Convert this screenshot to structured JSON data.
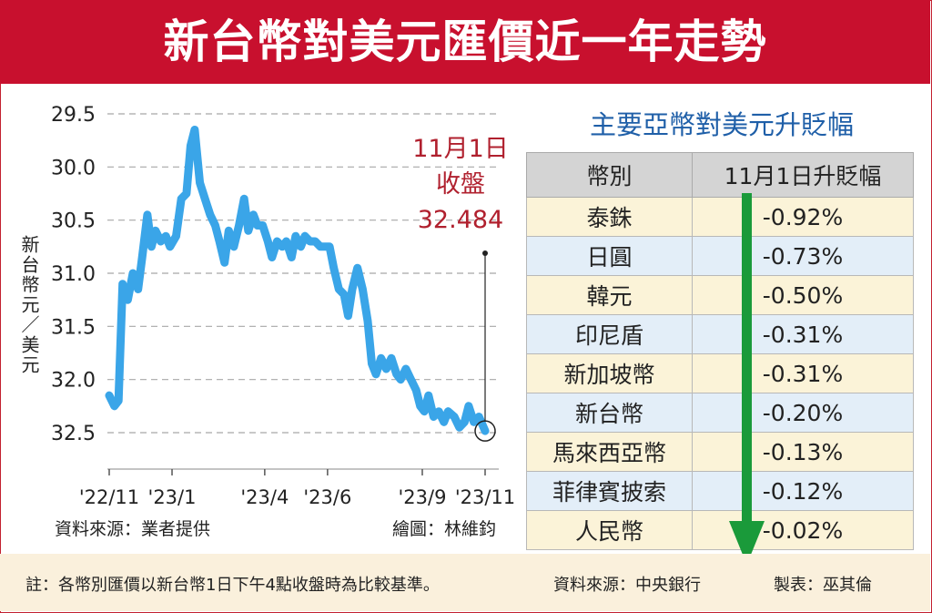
{
  "header": {
    "title": "新台幣對美元匯價近一年走勢"
  },
  "chart_data": {
    "type": "line",
    "ylabel": "新台幣元／美元",
    "y_ticks": [
      "29.5",
      "30.0",
      "30.5",
      "31.0",
      "31.5",
      "32.0",
      "32.5"
    ],
    "ylim": [
      29.5,
      32.5
    ],
    "y_inverted": true,
    "grid": "horizontal-dashed",
    "x_ticks": [
      "'22/11",
      "'23/1",
      "'23/4",
      "'23/6",
      "'23/9",
      "'23/11"
    ],
    "x_tick_dates": [
      "2022-11-01",
      "2023-01-01",
      "2023-04-01",
      "2023-06-01",
      "2023-09-01",
      "2023-11-01"
    ],
    "series": [
      {
        "color": "#3aa5e8",
        "points": [
          [
            "2022-11-01",
            32.15
          ],
          [
            "2022-11-06",
            32.25
          ],
          [
            "2022-11-10",
            32.2
          ],
          [
            "2022-11-14",
            31.1
          ],
          [
            "2022-11-19",
            31.25
          ],
          [
            "2022-11-24",
            31.0
          ],
          [
            "2022-11-29",
            31.15
          ],
          [
            "2022-12-03",
            30.85
          ],
          [
            "2022-12-08",
            30.45
          ],
          [
            "2022-12-12",
            30.75
          ],
          [
            "2022-12-16",
            30.6
          ],
          [
            "2022-12-21",
            30.7
          ],
          [
            "2022-12-26",
            30.65
          ],
          [
            "2022-12-30",
            30.75
          ],
          [
            "2023-01-05",
            30.65
          ],
          [
            "2023-01-10",
            30.3
          ],
          [
            "2023-01-15",
            30.25
          ],
          [
            "2023-01-19",
            29.8
          ],
          [
            "2023-01-23",
            29.65
          ],
          [
            "2023-01-28",
            30.15
          ],
          [
            "2023-02-02",
            30.3
          ],
          [
            "2023-02-07",
            30.45
          ],
          [
            "2023-02-12",
            30.55
          ],
          [
            "2023-02-16",
            30.7
          ],
          [
            "2023-02-21",
            30.9
          ],
          [
            "2023-02-25",
            30.6
          ],
          [
            "2023-03-02",
            30.75
          ],
          [
            "2023-03-07",
            30.55
          ],
          [
            "2023-03-12",
            30.3
          ],
          [
            "2023-03-16",
            30.6
          ],
          [
            "2023-03-21",
            30.45
          ],
          [
            "2023-03-25",
            30.55
          ],
          [
            "2023-03-30",
            30.55
          ],
          [
            "2023-04-04",
            30.7
          ],
          [
            "2023-04-08",
            30.85
          ],
          [
            "2023-04-13",
            30.7
          ],
          [
            "2023-04-18",
            30.75
          ],
          [
            "2023-04-22",
            30.7
          ],
          [
            "2023-04-27",
            30.85
          ],
          [
            "2023-05-01",
            30.65
          ],
          [
            "2023-05-06",
            30.75
          ],
          [
            "2023-05-10",
            30.65
          ],
          [
            "2023-05-15",
            30.7
          ],
          [
            "2023-05-20",
            30.7
          ],
          [
            "2023-05-25",
            30.75
          ],
          [
            "2023-05-30",
            30.75
          ],
          [
            "2023-06-03",
            30.75
          ],
          [
            "2023-06-07",
            30.95
          ],
          [
            "2023-06-12",
            31.15
          ],
          [
            "2023-06-17",
            31.2
          ],
          [
            "2023-06-21",
            31.4
          ],
          [
            "2023-06-25",
            31.15
          ],
          [
            "2023-06-30",
            30.95
          ],
          [
            "2023-07-05",
            31.15
          ],
          [
            "2023-07-10",
            31.45
          ],
          [
            "2023-07-14",
            31.85
          ],
          [
            "2023-07-18",
            31.95
          ],
          [
            "2023-07-23",
            31.8
          ],
          [
            "2023-07-28",
            31.9
          ],
          [
            "2023-08-02",
            31.8
          ],
          [
            "2023-08-07",
            31.95
          ],
          [
            "2023-08-11",
            32.0
          ],
          [
            "2023-08-16",
            31.9
          ],
          [
            "2023-08-21",
            32.0
          ],
          [
            "2023-08-26",
            32.1
          ],
          [
            "2023-08-30",
            32.25
          ],
          [
            "2023-09-03",
            32.3
          ],
          [
            "2023-09-07",
            32.15
          ],
          [
            "2023-09-12",
            32.35
          ],
          [
            "2023-09-17",
            32.3
          ],
          [
            "2023-09-22",
            32.4
          ],
          [
            "2023-09-26",
            32.3
          ],
          [
            "2023-10-02",
            32.35
          ],
          [
            "2023-10-07",
            32.45
          ],
          [
            "2023-10-12",
            32.4
          ],
          [
            "2023-10-16",
            32.25
          ],
          [
            "2023-10-21",
            32.4
          ],
          [
            "2023-10-26",
            32.35
          ],
          [
            "2023-11-01",
            32.484
          ]
        ]
      }
    ],
    "annotation": {
      "label_lines": [
        "11月1日",
        "收盤",
        "32.484"
      ],
      "date": "2023-11-01",
      "value": 32.484,
      "color": "#b0202e"
    }
  },
  "chart_credits": {
    "source": "資料來源：業者提供",
    "artist": "繪圖：林維鈞"
  },
  "table": {
    "title": "主要亞幣對美元升貶幅",
    "headers": [
      "幣別",
      "11月1日升貶幅"
    ],
    "rows": [
      {
        "name": "泰銖",
        "change": "-0.92%"
      },
      {
        "name": "日圓",
        "change": "-0.73%"
      },
      {
        "name": "韓元",
        "change": "-0.50%"
      },
      {
        "name": "印尼盾",
        "change": "-0.31%"
      },
      {
        "name": "新加坡幣",
        "change": "-0.31%"
      },
      {
        "name": "新台幣",
        "change": "-0.20%"
      },
      {
        "name": "馬來西亞幣",
        "change": "-0.13%"
      },
      {
        "name": "菲律賓披索",
        "change": "-0.12%"
      },
      {
        "name": "人民幣",
        "change": "-0.02%"
      }
    ],
    "arrow_color": "#1a9a3a"
  },
  "footer": {
    "note": "註：各幣別匯價以新台幣1日下午4點收盤時為比較基準。",
    "source": "資料來源：中央銀行",
    "maker": "製表：巫其倫"
  }
}
